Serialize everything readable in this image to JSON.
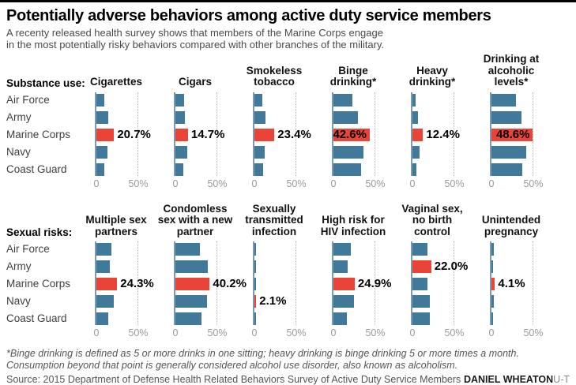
{
  "header": {
    "title": "Potentially adverse behaviors among active duty service members",
    "subtitle_line1": "A recenty released health survey shows that members of the Marine Corps engage",
    "subtitle_line2": "in the most potentially risky behaviors compared with other branches of the military."
  },
  "footer": {
    "footnote": "*Binge drinking is defined as 5 or more drinks in one sitting; heavy drinking is binge drinking 5 or more times a month. Consumption beyond that point is generally considered alcohol use disorder, also known as alcoholism.",
    "source": "Source: 2015 Department of Defense Health Related Behaviors Survey of Active Duty Service Members",
    "credit_name": "DANIEL WHEATON",
    "credit_org": "U-T"
  },
  "colors": {
    "bar": "#41799B",
    "highlight": "#EA4338",
    "axis_line": "#7D9AAB",
    "gridline": "#B9B9B9"
  },
  "chart_data": {
    "type": "bar",
    "orientation": "horizontal",
    "categories": [
      "Air Force",
      "Army",
      "Marine Corps",
      "Navy",
      "Coast Guard"
    ],
    "axis": {
      "min": 0,
      "max": 50,
      "tick_labels": [
        "0",
        "50%"
      ],
      "gridline_at": 50,
      "unit": "%"
    },
    "legend": "none",
    "groups": [
      {
        "label": "Substance use:",
        "charts": [
          {
            "title": "Cigarettes",
            "values": [
              9,
              13.5,
              20.7,
              13,
              9
            ],
            "highlight_index": 2,
            "highlight_label": "20.7%",
            "label_position": "outside"
          },
          {
            "title": "Cigars",
            "values": [
              10,
              11,
              14.7,
              13.5,
              9.5
            ],
            "highlight_index": 2,
            "highlight_label": "14.7%",
            "label_position": "outside"
          },
          {
            "title": "Smokeless tobacco",
            "values": [
              9,
              13,
              23.4,
              12,
              10
            ],
            "highlight_index": 2,
            "highlight_label": "23.4%",
            "label_position": "outside"
          },
          {
            "title": "Binge drinking*",
            "values": [
              22,
              29,
              42.6,
              35,
              32
            ],
            "highlight_index": 2,
            "highlight_label": "42.6%",
            "label_position": "inside"
          },
          {
            "title": "Heavy drinking*",
            "values": [
              3.5,
              6.5,
              12.4,
              8,
              4.5
            ],
            "highlight_index": 2,
            "highlight_label": "12.4%",
            "label_position": "outside"
          },
          {
            "title": "Drinking at alcoholic levels*",
            "values": [
              29,
              35,
              48.6,
              41,
              36
            ],
            "highlight_index": 2,
            "highlight_label": "48.6%",
            "label_position": "inside"
          }
        ]
      },
      {
        "label": "Sexual risks:",
        "charts": [
          {
            "title": "Multiple sex partners",
            "values": [
              18,
              16,
              24.3,
              20.5,
              13.5
            ],
            "highlight_index": 2,
            "highlight_label": "24.3%",
            "label_position": "outside"
          },
          {
            "title": "Condomless sex with a new partner",
            "values": [
              28.5,
              38,
              40.2,
              37,
              30.5
            ],
            "highlight_index": 2,
            "highlight_label": "40.2%",
            "label_position": "outside"
          },
          {
            "title": "Sexually transmitted infection",
            "values": [
              1,
              1.7,
              1,
              2.1,
              0.7
            ],
            "highlight_index": 3,
            "highlight_label": "2.1%",
            "label_position": "outside"
          },
          {
            "title": "High risk for HIV infection",
            "values": [
              20.5,
              17,
              24.9,
              24,
              16
            ],
            "highlight_index": 2,
            "highlight_label": "24.9%",
            "label_position": "outside"
          },
          {
            "title": "Vaginal sex, no birth control",
            "values": [
              17.5,
              22,
              18,
              20,
              20.5
            ],
            "highlight_index": 1,
            "highlight_label": "22.0%",
            "label_position": "outside"
          },
          {
            "title": "Unintended pregnancy",
            "values": [
              2.4,
              1.8,
              4.1,
              2.7,
              1.3
            ],
            "highlight_index": 2,
            "highlight_label": "4.1%",
            "label_position": "outside"
          }
        ]
      }
    ]
  }
}
